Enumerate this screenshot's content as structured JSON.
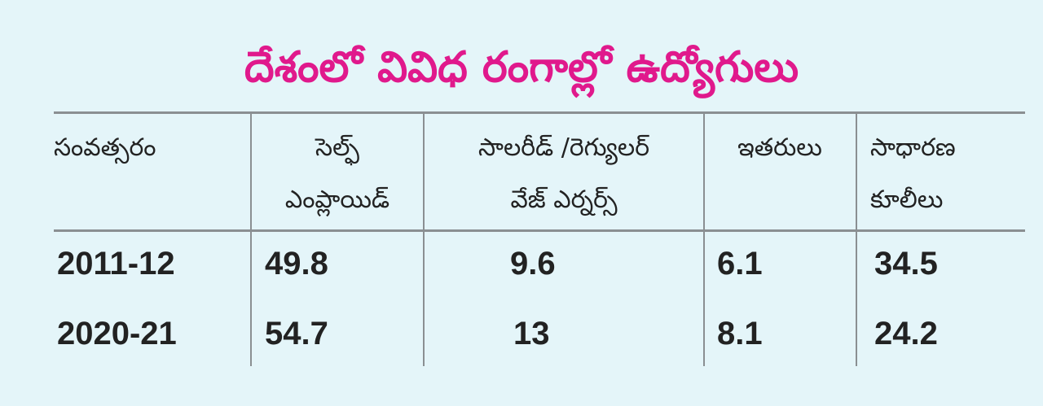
{
  "title": "దేశంలో వివిధ రంగాల్లో ఉద్యోగులు",
  "table": {
    "headers": [
      "సంవత్సరం",
      "సెల్ఫ్\nఎంప్లాయిడ్",
      "సాలరీడ్ /రెగ్యులర్\nవేజ్ ఎర్నర్స్",
      "ఇతరులు",
      "సాధారణ\nకూలీలు"
    ],
    "rows": [
      [
        "2011-12",
        "49.8",
        "9.6",
        "6.1",
        "34.5"
      ],
      [
        "2020-21",
        "54.7",
        "13",
        "8.1",
        "24.2"
      ]
    ]
  }
}
